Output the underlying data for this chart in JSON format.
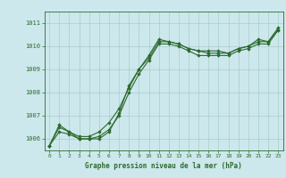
{
  "title": "Graphe pression niveau de la mer (hPa)",
  "bg_color": "#cce8ec",
  "grid_color": "#aacccc",
  "line_color": "#2d6a2d",
  "marker_color": "#2d6a2d",
  "xlim": [
    -0.5,
    23.5
  ],
  "ylim": [
    1005.5,
    1011.5
  ],
  "yticks": [
    1006,
    1007,
    1008,
    1009,
    1010,
    1011
  ],
  "xticks": [
    0,
    1,
    2,
    3,
    4,
    5,
    6,
    7,
    8,
    9,
    10,
    11,
    12,
    13,
    14,
    15,
    16,
    17,
    18,
    19,
    20,
    21,
    22,
    23
  ],
  "xtick_labels": [
    "0",
    "1",
    "2",
    "3",
    "4",
    "5",
    "6",
    "7",
    "8",
    "9",
    "10",
    "11",
    "12",
    "13",
    "14",
    "15",
    "16",
    "17",
    "18",
    "19",
    "20",
    "21",
    "22",
    "23"
  ],
  "series": [
    [
      1005.7,
      1006.6,
      1006.3,
      1006.0,
      1006.0,
      1006.0,
      1006.3,
      1007.1,
      1008.3,
      1009.0,
      1009.6,
      1010.3,
      1010.2,
      1010.1,
      1009.9,
      1009.8,
      1009.8,
      1009.8,
      1009.7,
      1009.9,
      1010.0,
      1010.3,
      1010.2,
      1010.8
    ],
    [
      1005.7,
      1006.3,
      1006.2,
      1006.0,
      1006.0,
      1006.1,
      1006.4,
      1007.0,
      1008.0,
      1008.8,
      1009.4,
      1010.1,
      1010.1,
      1010.0,
      1009.8,
      1009.6,
      1009.6,
      1009.6,
      1009.6,
      1009.8,
      1009.9,
      1010.1,
      1010.1,
      1010.7
    ],
    [
      1005.7,
      1006.5,
      1006.3,
      1006.1,
      1006.1,
      1006.3,
      1006.7,
      1007.3,
      1008.2,
      1009.0,
      1009.5,
      1010.2,
      1010.2,
      1010.1,
      1009.9,
      1009.8,
      1009.7,
      1009.7,
      1009.7,
      1009.9,
      1010.0,
      1010.2,
      1010.2,
      1010.7
    ]
  ]
}
